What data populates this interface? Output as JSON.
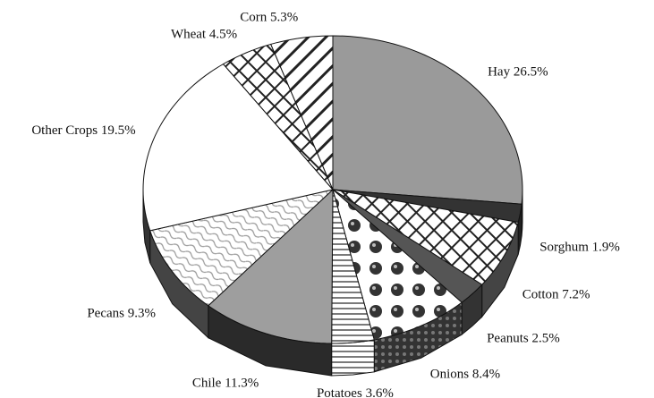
{
  "chart_data": {
    "type": "pie",
    "categories": [
      "Hay",
      "Sorghum",
      "Cotton",
      "Peanuts",
      "Onions",
      "Potatoes",
      "Chile",
      "Pecans",
      "Other Crops",
      "Wheat",
      "Corn"
    ],
    "values": [
      26.5,
      1.9,
      7.2,
      2.5,
      8.4,
      3.6,
      11.3,
      9.3,
      19.5,
      4.5,
      5.3
    ],
    "value_labels": [
      "26.5%",
      "1.9%",
      "7.2%",
      "2.5%",
      "8.4%",
      "3.6%",
      "11.3%",
      "9.3%",
      "19.5%",
      "4.5%",
      "5.3%"
    ]
  }
}
